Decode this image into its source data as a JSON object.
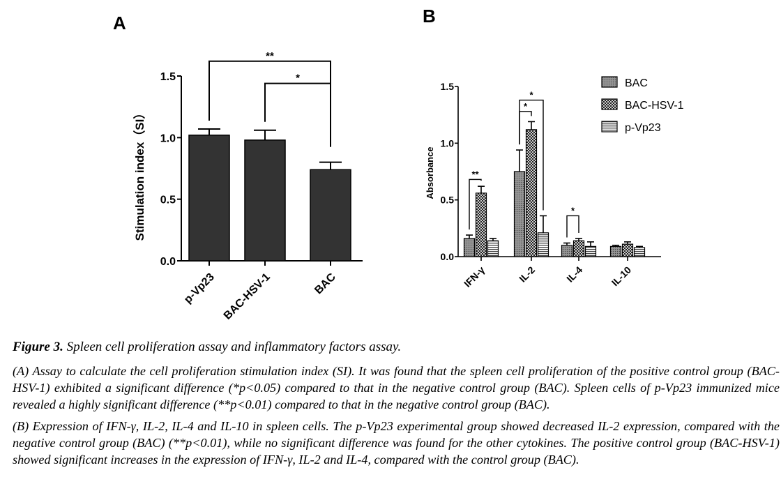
{
  "chart_data": [
    {
      "panel": "A",
      "type": "bar",
      "title": "",
      "xlabel": "",
      "ylabel": "Stimulation index（SI）",
      "ylim": [
        0,
        1.5
      ],
      "yticks": [
        "0.0",
        "0.5",
        "1.0",
        "1.5"
      ],
      "categories": [
        "p-Vp23",
        "BAC-HSV-1",
        "BAC"
      ],
      "values": [
        1.02,
        0.98,
        0.74
      ],
      "errors": [
        0.05,
        0.08,
        0.06
      ],
      "bar_color": "#333333",
      "significance": [
        {
          "from": 0,
          "to": 2,
          "label": "**",
          "y": 1.62
        },
        {
          "from": 1,
          "to": 2,
          "label": "*",
          "y": 1.44
        }
      ]
    },
    {
      "panel": "B",
      "type": "bar",
      "title": "",
      "xlabel": "",
      "ylabel": "Absorbance",
      "ylim": [
        0,
        1.5
      ],
      "yticks": [
        "0.0",
        "0.5",
        "1.0",
        "1.5"
      ],
      "categories": [
        "IFN-γ",
        "IL-2",
        "IL-4",
        "IL-10"
      ],
      "series": [
        {
          "name": "BAC",
          "values": [
            0.16,
            0.75,
            0.1,
            0.09
          ],
          "errors": [
            0.03,
            0.19,
            0.02,
            0.01
          ],
          "pattern": "bac"
        },
        {
          "name": "BAC-HSV-1",
          "values": [
            0.56,
            1.12,
            0.14,
            0.11
          ],
          "errors": [
            0.06,
            0.07,
            0.02,
            0.02
          ],
          "pattern": "hsv"
        },
        {
          "name": "p-Vp23",
          "values": [
            0.14,
            0.21,
            0.09,
            0.08
          ],
          "errors": [
            0.02,
            0.15,
            0.04,
            0.01
          ],
          "pattern": "vp23"
        }
      ],
      "legend": "top-right",
      "significance": [
        {
          "group": 0,
          "from": 0,
          "to": 1,
          "label": "**",
          "y": 0.68
        },
        {
          "group": 1,
          "from": 1,
          "to": 0,
          "label": "*",
          "y": 1.28
        },
        {
          "group": 1,
          "from": 0,
          "to": 2,
          "label": "*",
          "y": 1.38
        },
        {
          "group": 2,
          "from": 0,
          "to": 1,
          "label": "*",
          "y": 0.36
        }
      ]
    }
  ],
  "panels": {
    "a_label": "A",
    "b_label": "B"
  },
  "caption": {
    "figure_label": "Figure 3.",
    "figure_title": "Spleen cell proliferation assay and inflammatory factors assay.",
    "para_a": "(A) Assay to calculate the cell proliferation stimulation index (SI). It was found that the spleen cell proliferation of the positive control group (BAC-HSV-1) exhibited a significant difference (*p<0.05) compared to that in the negative control group (BAC). Spleen cells of p-Vp23 immunized mice revealed a highly significant difference (**p<0.01) compared to that in the negative control group (BAC).",
    "para_b": "(B) Expression of IFN-γ, IL-2, IL-4 and IL-10 in spleen cells. The p-Vp23 experimental group showed decreased IL-2 expression, compared with the negative control group (BAC) (**p<0.01), while no significant difference was found for the other cytokines. The positive control group (BAC-HSV-1) showed significant increases in the expression of IFN-γ, IL-2 and IL-4, compared with the control group (BAC)."
  }
}
